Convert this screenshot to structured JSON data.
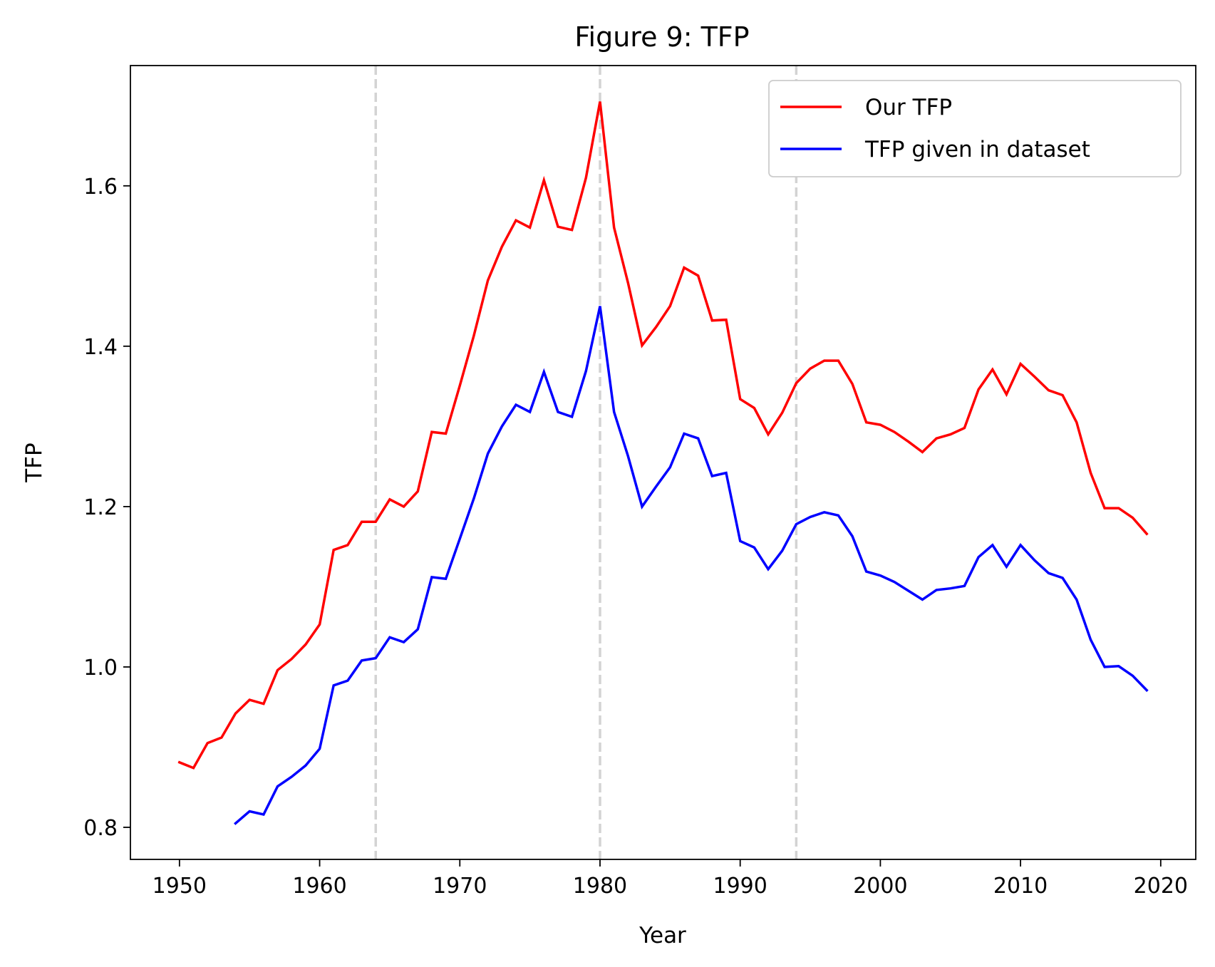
{
  "chart_data": {
    "type": "line",
    "title": "Figure 9: TFP",
    "xlabel": "Year",
    "ylabel": "TFP",
    "xlim": [
      1946.5,
      2022.5
    ],
    "ylim": [
      0.76,
      1.75
    ],
    "xticks": [
      1950,
      1960,
      1970,
      1980,
      1990,
      2000,
      2010,
      2020
    ],
    "yticks": [
      0.8,
      1.0,
      1.2,
      1.4,
      1.6
    ],
    "xtick_labels": [
      "1950",
      "1960",
      "1970",
      "1980",
      "1990",
      "2000",
      "2010",
      "2020"
    ],
    "ytick_labels": [
      "0.8",
      "1.0",
      "1.2",
      "1.4",
      "1.6"
    ],
    "grid": false,
    "legend_position": "top-right",
    "vertical_lines": [
      1964,
      1980,
      1994
    ],
    "vertical_line_color": "#d3d3d3",
    "series": [
      {
        "name": "Our TFP",
        "color": "#ff0000",
        "x": [
          1950,
          1951,
          1952,
          1953,
          1954,
          1955,
          1956,
          1957,
          1958,
          1959,
          1960,
          1961,
          1962,
          1963,
          1964,
          1965,
          1966,
          1967,
          1968,
          1969,
          1970,
          1971,
          1972,
          1973,
          1974,
          1975,
          1976,
          1977,
          1978,
          1979,
          1980,
          1981,
          1982,
          1983,
          1984,
          1985,
          1986,
          1987,
          1988,
          1989,
          1990,
          1991,
          1992,
          1993,
          1994,
          1995,
          1996,
          1997,
          1998,
          1999,
          2000,
          2001,
          2002,
          2003,
          2004,
          2005,
          2006,
          2007,
          2008,
          2009,
          2010,
          2011,
          2012,
          2013,
          2014,
          2015,
          2016,
          2017,
          2018,
          2019
        ],
        "y": [
          0.881,
          0.874,
          0.905,
          0.912,
          0.942,
          0.959,
          0.954,
          0.996,
          1.01,
          1.028,
          1.053,
          1.146,
          1.152,
          1.181,
          1.181,
          1.209,
          1.2,
          1.219,
          1.293,
          1.291,
          1.351,
          1.413,
          1.482,
          1.524,
          1.557,
          1.548,
          1.607,
          1.549,
          1.545,
          1.61,
          1.705,
          1.548,
          1.479,
          1.401,
          1.424,
          1.45,
          1.498,
          1.488,
          1.432,
          1.433,
          1.334,
          1.323,
          1.29,
          1.317,
          1.354,
          1.372,
          1.382,
          1.382,
          1.353,
          1.305,
          1.302,
          1.293,
          1.281,
          1.268,
          1.285,
          1.29,
          1.298,
          1.346,
          1.371,
          1.34,
          1.378,
          1.362,
          1.345,
          1.339,
          1.305,
          1.242,
          1.198,
          1.198,
          1.186,
          1.166
        ]
      },
      {
        "name": "TFP given in dataset",
        "color": "#0000ff",
        "x": [
          1954,
          1955,
          1956,
          1957,
          1958,
          1959,
          1960,
          1961,
          1962,
          1963,
          1964,
          1965,
          1966,
          1967,
          1968,
          1969,
          1970,
          1971,
          1972,
          1973,
          1974,
          1975,
          1976,
          1977,
          1978,
          1979,
          1980,
          1981,
          1982,
          1983,
          1984,
          1985,
          1986,
          1987,
          1988,
          1989,
          1990,
          1991,
          1992,
          1993,
          1994,
          1995,
          1996,
          1997,
          1998,
          1999,
          2000,
          2001,
          2002,
          2003,
          2004,
          2005,
          2006,
          2007,
          2008,
          2009,
          2010,
          2011,
          2012,
          2013,
          2014,
          2015,
          2016,
          2017,
          2018,
          2019
        ],
        "y": [
          0.805,
          0.82,
          0.816,
          0.851,
          0.863,
          0.877,
          0.898,
          0.977,
          0.983,
          1.008,
          1.011,
          1.037,
          1.031,
          1.047,
          1.112,
          1.11,
          1.16,
          1.21,
          1.266,
          1.3,
          1.327,
          1.318,
          1.368,
          1.318,
          1.312,
          1.369,
          1.45,
          1.318,
          1.263,
          1.2,
          1.225,
          1.249,
          1.291,
          1.285,
          1.238,
          1.242,
          1.157,
          1.149,
          1.122,
          1.145,
          1.178,
          1.187,
          1.193,
          1.189,
          1.163,
          1.119,
          1.114,
          1.106,
          1.095,
          1.084,
          1.096,
          1.098,
          1.101,
          1.137,
          1.152,
          1.125,
          1.152,
          1.133,
          1.117,
          1.111,
          1.084,
          1.034,
          1.0,
          1.001,
          0.989,
          0.971
        ]
      }
    ]
  }
}
